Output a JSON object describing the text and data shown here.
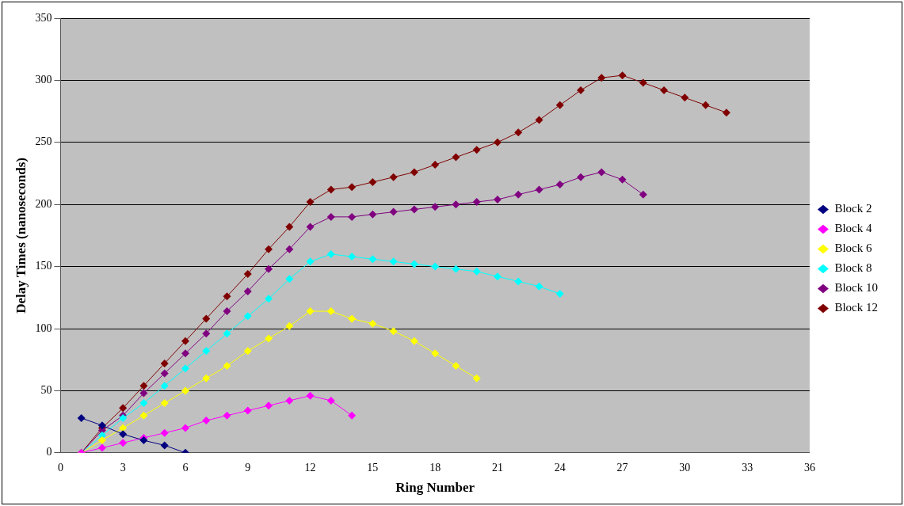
{
  "chart_data": {
    "type": "line",
    "xlabel": "Ring Number",
    "ylabel": "Delay Times (nanoseconds)",
    "xlim": [
      0,
      36
    ],
    "xticks": [
      0,
      3,
      6,
      9,
      12,
      15,
      18,
      21,
      24,
      27,
      30,
      33,
      36
    ],
    "ylim": [
      0,
      350
    ],
    "yticks": [
      0,
      50,
      100,
      150,
      200,
      250,
      300,
      350
    ],
    "grid": "y",
    "legend": "right",
    "marker": "diamond",
    "line_style": "solid",
    "series": [
      {
        "name": "Block 2",
        "color": "#000080",
        "x": [
          1,
          2,
          3,
          4,
          5,
          6
        ],
        "values": [
          28,
          22,
          15,
          10,
          6,
          0
        ]
      },
      {
        "name": "Block 4",
        "color": "#ff00ff",
        "x": [
          1,
          2,
          3,
          4,
          5,
          6,
          7,
          8,
          9,
          10,
          11,
          12,
          13,
          14
        ],
        "values": [
          0,
          4,
          8,
          12,
          16,
          20,
          26,
          30,
          34,
          38,
          42,
          46,
          42,
          30
        ]
      },
      {
        "name": "Block 6",
        "color": "#ffff00",
        "x": [
          1,
          2,
          3,
          4,
          5,
          6,
          7,
          8,
          9,
          10,
          11,
          12,
          13,
          14,
          15,
          16,
          17,
          18,
          19,
          20
        ],
        "values": [
          0,
          10,
          20,
          30,
          40,
          50,
          60,
          70,
          82,
          92,
          102,
          114,
          114,
          108,
          104,
          98,
          90,
          80,
          70,
          60
        ]
      },
      {
        "name": "Block 8",
        "color": "#00ffff",
        "x": [
          1,
          2,
          3,
          4,
          5,
          6,
          7,
          8,
          9,
          10,
          11,
          12,
          13,
          14,
          15,
          16,
          17,
          18,
          19,
          20,
          21,
          22,
          23,
          24
        ],
        "values": [
          0,
          14,
          28,
          40,
          54,
          68,
          82,
          96,
          110,
          124,
          140,
          154,
          160,
          158,
          156,
          154,
          152,
          150,
          148,
          146,
          142,
          138,
          134,
          128
        ]
      },
      {
        "name": "Block 10",
        "color": "#800080",
        "x": [
          1,
          2,
          3,
          4,
          5,
          6,
          7,
          8,
          9,
          10,
          11,
          12,
          13,
          14,
          15,
          16,
          17,
          18,
          19,
          20,
          21,
          22,
          23,
          24,
          25,
          26,
          27,
          28
        ],
        "values": [
          0,
          18,
          30,
          48,
          64,
          80,
          96,
          114,
          130,
          148,
          164,
          182,
          190,
          190,
          192,
          194,
          196,
          198,
          200,
          202,
          204,
          208,
          212,
          216,
          222,
          226,
          220,
          208
        ]
      },
      {
        "name": "Block 12",
        "color": "#800000",
        "x": [
          1,
          2,
          3,
          4,
          5,
          6,
          7,
          8,
          9,
          10,
          11,
          12,
          13,
          14,
          15,
          16,
          17,
          18,
          19,
          20,
          21,
          22,
          23,
          24,
          25,
          26,
          27,
          28,
          29,
          30,
          31,
          32
        ],
        "values": [
          0,
          20,
          36,
          54,
          72,
          90,
          108,
          126,
          144,
          164,
          182,
          202,
          212,
          214,
          218,
          222,
          226,
          232,
          238,
          244,
          250,
          258,
          268,
          280,
          292,
          302,
          304,
          298,
          292,
          286,
          280,
          274
        ]
      }
    ]
  }
}
